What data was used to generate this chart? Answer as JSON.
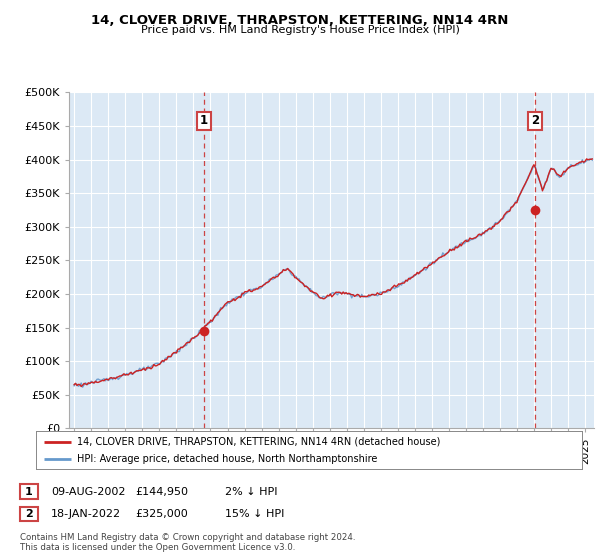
{
  "title": "14, CLOVER DRIVE, THRAPSTON, KETTERING, NN14 4RN",
  "subtitle": "Price paid vs. HM Land Registry's House Price Index (HPI)",
  "ylim": [
    0,
    500000
  ],
  "yticks": [
    0,
    50000,
    100000,
    150000,
    200000,
    250000,
    300000,
    350000,
    400000,
    450000,
    500000
  ],
  "xlim_start": 1994.7,
  "xlim_end": 2025.5,
  "sale1_date": 2002.6,
  "sale1_price": 144950,
  "sale1_label": "1",
  "sale2_date": 2022.05,
  "sale2_price": 325000,
  "sale2_label": "2",
  "hpi_color": "#6699cc",
  "price_color": "#cc2222",
  "vline_color": "#cc4444",
  "background_color": "#ffffff",
  "plot_bg_color": "#dce9f5",
  "grid_color": "#ffffff",
  "legend_entry1": "14, CLOVER DRIVE, THRAPSTON, KETTERING, NN14 4RN (detached house)",
  "legend_entry2": "HPI: Average price, detached house, North Northamptonshire",
  "footnote1": "Contains HM Land Registry data © Crown copyright and database right 2024.",
  "footnote2": "This data is licensed under the Open Government Licence v3.0.",
  "table_row1": [
    "1",
    "09-AUG-2002",
    "£144,950",
    "2% ↓ HPI"
  ],
  "table_row2": [
    "2",
    "18-JAN-2022",
    "£325,000",
    "15% ↓ HPI"
  ]
}
